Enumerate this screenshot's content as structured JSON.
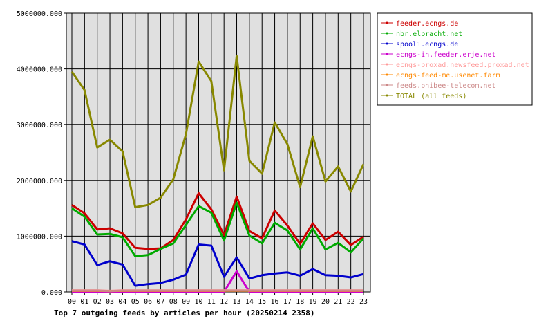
{
  "chart_data": {
    "type": "line",
    "title": "Top 7 outgoing feeds by articles per hour (20250214 2358)",
    "xlabel": "",
    "ylabel": "",
    "categories": [
      "00",
      "01",
      "02",
      "03",
      "04",
      "05",
      "06",
      "07",
      "08",
      "09",
      "10",
      "11",
      "12",
      "13",
      "14",
      "15",
      "16",
      "17",
      "18",
      "19",
      "20",
      "21",
      "22",
      "23"
    ],
    "ylim": [
      0,
      5000000
    ],
    "yticks": [
      "0.000",
      "1000000.000",
      "2000000.000",
      "3000000.000",
      "4000000.000",
      "5000000.000"
    ],
    "grid": true,
    "legend_position": "top-right",
    "series": [
      {
        "name": "feeder.ecngs.de",
        "color": "#cc0000",
        "values": [
          1560000,
          1410000,
          1120000,
          1140000,
          1050000,
          790000,
          770000,
          780000,
          930000,
          1300000,
          1770000,
          1480000,
          1020000,
          1710000,
          1090000,
          960000,
          1460000,
          1190000,
          860000,
          1230000,
          930000,
          1080000,
          840000,
          990000
        ]
      },
      {
        "name": "nbr.elbracht.net",
        "color": "#00aa00",
        "values": [
          1500000,
          1350000,
          1030000,
          1040000,
          980000,
          640000,
          660000,
          770000,
          870000,
          1200000,
          1540000,
          1420000,
          920000,
          1600000,
          1010000,
          870000,
          1240000,
          1100000,
          760000,
          1140000,
          760000,
          880000,
          710000,
          960000
        ]
      },
      {
        "name": "spool1.ecngs.de",
        "color": "#0000cc",
        "values": [
          910000,
          850000,
          480000,
          550000,
          490000,
          110000,
          140000,
          160000,
          220000,
          310000,
          850000,
          830000,
          270000,
          620000,
          240000,
          300000,
          330000,
          350000,
          290000,
          410000,
          300000,
          290000,
          260000,
          320000
        ]
      },
      {
        "name": "ecngs-in.feeder.erje.net",
        "color": "#cc00cc",
        "values": [
          0,
          0,
          0,
          0,
          0,
          0,
          0,
          0,
          0,
          0,
          0,
          0,
          0,
          370000,
          0,
          0,
          0,
          0,
          0,
          0,
          0,
          0,
          0,
          0
        ]
      },
      {
        "name": "ecngs-proxad.newsfeed.proxad.net",
        "color": "#ff9999",
        "values": [
          30000,
          30000,
          30000,
          20000,
          30000,
          30000,
          30000,
          30000,
          30000,
          30000,
          30000,
          30000,
          30000,
          30000,
          30000,
          30000,
          30000,
          30000,
          30000,
          30000,
          30000,
          30000,
          30000,
          30000
        ]
      },
      {
        "name": "ecngs-feed-me.usenet.farm",
        "color": "#ff8800",
        "values": [
          20000,
          20000,
          20000,
          15000,
          20000,
          20000,
          20000,
          20000,
          20000,
          20000,
          20000,
          20000,
          20000,
          20000,
          20000,
          20000,
          20000,
          20000,
          20000,
          20000,
          20000,
          20000,
          20000,
          20000
        ]
      },
      {
        "name": "feeds.phibee-telecom.net",
        "color": "#cc8888",
        "values": [
          25000,
          25000,
          25000,
          15000,
          25000,
          25000,
          25000,
          25000,
          25000,
          25000,
          25000,
          25000,
          25000,
          25000,
          25000,
          25000,
          25000,
          25000,
          25000,
          25000,
          25000,
          25000,
          25000,
          25000
        ]
      },
      {
        "name": "TOTAL (all feeds)",
        "color": "#888800",
        "values": [
          3950000,
          3620000,
          2590000,
          2730000,
          2520000,
          1520000,
          1560000,
          1690000,
          2020000,
          2830000,
          4130000,
          3780000,
          2180000,
          4230000,
          2350000,
          2120000,
          3040000,
          2650000,
          1880000,
          2790000,
          1980000,
          2250000,
          1800000,
          2290000
        ]
      }
    ]
  }
}
